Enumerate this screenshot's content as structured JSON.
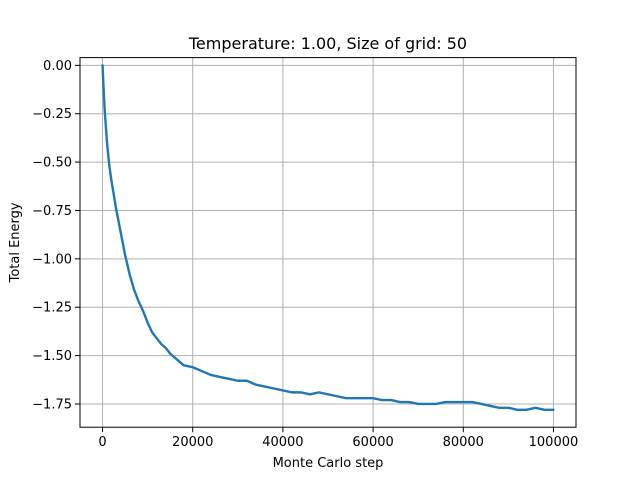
{
  "chart_data": {
    "type": "line",
    "title": "Temperature: 1.00, Size of grid: 50",
    "xlabel": "Monte Carlo step",
    "ylabel": "Total Energy",
    "xlim": [
      -5000,
      105000
    ],
    "ylim": [
      -1.87,
      0.04
    ],
    "xticks": [
      0,
      20000,
      40000,
      60000,
      80000,
      100000
    ],
    "xtick_labels": [
      "0",
      "20000",
      "40000",
      "60000",
      "80000",
      "100000"
    ],
    "yticks": [
      0.0,
      -0.25,
      -0.5,
      -0.75,
      -1.0,
      -1.25,
      -1.5,
      -1.75
    ],
    "ytick_labels": [
      "0.00",
      "−0.25",
      "−0.50",
      "−0.75",
      "−1.00",
      "−1.25",
      "−1.50",
      "−1.75"
    ],
    "grid": true,
    "series": [
      {
        "color": "#1f77b4",
        "x": [
          0,
          250,
          500,
          1000,
          1500,
          2000,
          2500,
          3000,
          4000,
          5000,
          6000,
          7000,
          8000,
          9000,
          10000,
          11000,
          12000,
          13000,
          14000,
          15000,
          16000,
          17000,
          18000,
          20000,
          22000,
          24000,
          26000,
          28000,
          30000,
          32000,
          34000,
          36000,
          38000,
          40000,
          42000,
          44000,
          46000,
          48000,
          50000,
          52000,
          54000,
          56000,
          58000,
          60000,
          62000,
          64000,
          66000,
          68000,
          70000,
          72000,
          74000,
          76000,
          78000,
          80000,
          82000,
          84000,
          86000,
          88000,
          90000,
          92000,
          94000,
          96000,
          98000,
          100000
        ],
        "y": [
          0.0,
          -0.13,
          -0.24,
          -0.4,
          -0.52,
          -0.6,
          -0.67,
          -0.74,
          -0.86,
          -0.98,
          -1.08,
          -1.16,
          -1.22,
          -1.27,
          -1.33,
          -1.38,
          -1.41,
          -1.44,
          -1.46,
          -1.49,
          -1.51,
          -1.53,
          -1.55,
          -1.56,
          -1.58,
          -1.6,
          -1.61,
          -1.62,
          -1.63,
          -1.63,
          -1.65,
          -1.66,
          -1.67,
          -1.68,
          -1.69,
          -1.69,
          -1.7,
          -1.69,
          -1.7,
          -1.71,
          -1.72,
          -1.72,
          -1.72,
          -1.72,
          -1.73,
          -1.73,
          -1.74,
          -1.74,
          -1.75,
          -1.75,
          -1.75,
          -1.74,
          -1.74,
          -1.74,
          -1.74,
          -1.75,
          -1.76,
          -1.77,
          -1.77,
          -1.78,
          -1.78,
          -1.77,
          -1.78,
          -1.78
        ]
      }
    ]
  }
}
